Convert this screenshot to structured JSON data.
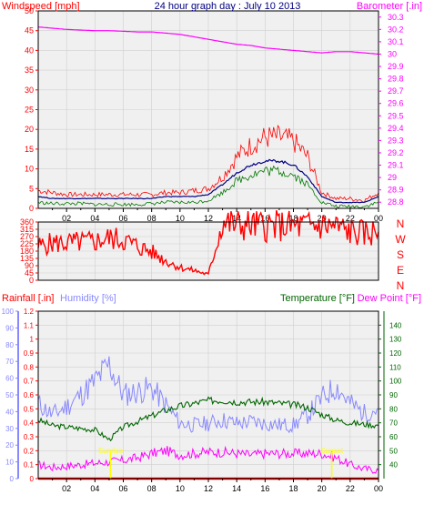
{
  "colors": {
    "background": "#ffffff",
    "panel": "#f0f0f0",
    "frame": "#000000",
    "windspeed": "#ff0000",
    "windspeed_avg": "#007700",
    "windspeed_mid": "#000080",
    "barometer": "#ff00ff",
    "title": "#000080",
    "direction": "#ff0000",
    "rainfall": "#ff0000",
    "humidity": "#8888ff",
    "temperature": "#006600",
    "dewpoint": "#ff00ff",
    "sun_marker": "#ffff00"
  },
  "header": {
    "title": "24 hour graph day : July 10 2013"
  },
  "chart_data": [
    {
      "type": "line",
      "name": "wind-baro",
      "title": "24 hour graph day : July 10 2013",
      "ylabel_left": "Windspeed [mph]",
      "ylabel_right": "Barometer [.in]",
      "ylim_left": [
        0,
        50
      ],
      "ylim_right": [
        28.75,
        30.35
      ],
      "yticks_left": [
        0,
        5,
        10,
        15,
        20,
        25,
        30,
        35,
        40,
        45,
        50
      ],
      "yticks_right": [
        28.8,
        28.9,
        29,
        29.1,
        29.2,
        29.3,
        29.4,
        29.5,
        29.6,
        29.7,
        29.8,
        29.9,
        30,
        30.1,
        30.2,
        30.3
      ],
      "ytick_labels_right": [
        "28.8",
        "28.9",
        "29",
        "29.1",
        "29.2",
        "29.3",
        "29.4",
        "29.5",
        "29.6",
        "29.7",
        "29.8",
        "29.9",
        "30",
        "30.1",
        "30.2",
        "30.3"
      ],
      "x_hours": [
        0,
        1,
        2,
        3,
        4,
        5,
        6,
        7,
        8,
        9,
        10,
        11,
        12,
        13,
        14,
        15,
        16,
        17,
        18,
        19,
        20,
        21,
        22,
        23,
        24
      ],
      "xtick_labels": [
        "02",
        "04",
        "06",
        "08",
        "10",
        "12",
        "14",
        "16",
        "18",
        "20",
        "22",
        "00"
      ],
      "grid": true,
      "series": [
        {
          "role": "gust",
          "axis": "left",
          "values": [
            4.5,
            4,
            3.5,
            3.5,
            3.5,
            3.5,
            3.5,
            3.5,
            3.5,
            4,
            4,
            4.5,
            5,
            8,
            13,
            16,
            18,
            18,
            17,
            13,
            4,
            2.5,
            2.5,
            2,
            4
          ]
        },
        {
          "role": "average",
          "axis": "left",
          "values": [
            3,
            2.5,
            2.5,
            2.5,
            2.5,
            2.5,
            2.5,
            2.5,
            2.5,
            3,
            3,
            3,
            3.5,
            6,
            9,
            11,
            12,
            12,
            11,
            8,
            3,
            1.5,
            1.5,
            1.5,
            3
          ]
        },
        {
          "role": "speed",
          "axis": "left",
          "values": [
            1.5,
            1.2,
            1.2,
            1.2,
            1,
            1,
            1,
            1,
            1.2,
            1.5,
            1.5,
            1.5,
            2,
            4,
            7,
            8.5,
            9.5,
            9.5,
            8.5,
            6,
            1.5,
            0.5,
            0.5,
            0.5,
            1.5
          ]
        },
        {
          "role": "barometer",
          "axis": "right",
          "values": [
            30.22,
            30.21,
            30.2,
            30.195,
            30.19,
            30.19,
            30.185,
            30.18,
            30.18,
            30.17,
            30.16,
            30.14,
            30.12,
            30.1,
            30.08,
            30.07,
            30.05,
            30.04,
            30.03,
            30.02,
            30.01,
            30.02,
            30.02,
            30.01,
            30.0
          ]
        }
      ]
    },
    {
      "type": "line",
      "name": "wind-direction",
      "ylim": [
        0,
        360
      ],
      "yticks": [
        0,
        45,
        90,
        135,
        180,
        225,
        270,
        315,
        360
      ],
      "ytick_labels": [
        "0",
        "45",
        "90",
        "135",
        "180",
        "225",
        "270",
        "315",
        "360"
      ],
      "compass_labels": [
        "N",
        "W",
        "S",
        "E",
        "N"
      ],
      "x_hours": [
        0,
        1,
        2,
        3,
        4,
        5,
        6,
        7,
        8,
        9,
        10,
        11,
        12,
        13,
        14,
        15,
        16,
        17,
        18,
        19,
        20,
        21,
        22,
        23,
        24
      ],
      "series": [
        {
          "role": "direction",
          "values": [
            210,
            230,
            230,
            235,
            240,
            260,
            250,
            210,
            175,
            120,
            80,
            60,
            35,
            360,
            340,
            340,
            335,
            335,
            335,
            335,
            340,
            330,
            300,
            290,
            300
          ]
        }
      ]
    },
    {
      "type": "line",
      "name": "rain-humidity-temp",
      "ylabel_rain": "Rainfall [.in]",
      "ylabel_humidity": "Humidity [%]",
      "ylabel_temp": "Temperature [°F]",
      "ylabel_dew": "Dew Point [°F]",
      "ylim_rain": [
        0,
        1.2
      ],
      "ylim_humidity": [
        0,
        100
      ],
      "ylim_temp": [
        30,
        150
      ],
      "yticks_rain": [
        0,
        0.1,
        0.2,
        0.3,
        0.4,
        0.5,
        0.6,
        0.7,
        0.8,
        0.9,
        1,
        1.1,
        1.2
      ],
      "ytick_labels_rain": [
        "0",
        "0.1",
        "0.2",
        "0.3",
        "0.4",
        "0.5",
        "0.6",
        "0.7",
        "0.8",
        "0.9",
        "1",
        "1.1",
        "1.2"
      ],
      "yticks_humidity": [
        0,
        10,
        20,
        30,
        40,
        50,
        60,
        70,
        80,
        90,
        100
      ],
      "yticks_temp": [
        40,
        50,
        60,
        70,
        80,
        90,
        100,
        110,
        120,
        130,
        140
      ],
      "x_hours": [
        0,
        1,
        2,
        3,
        4,
        5,
        6,
        7,
        8,
        9,
        10,
        11,
        12,
        13,
        14,
        15,
        16,
        17,
        18,
        19,
        20,
        21,
        22,
        23,
        24
      ],
      "xtick_labels": [
        "02",
        "04",
        "06",
        "08",
        "10",
        "12",
        "14",
        "16",
        "18",
        "20",
        "22",
        "00"
      ],
      "sun_events": [
        {
          "label": "Sunrise",
          "hour": 5.1
        },
        {
          "label": "Sunset",
          "hour": 20.7
        }
      ],
      "series": [
        {
          "role": "rainfall",
          "axis": "rain",
          "values": [
            0,
            0,
            0,
            0,
            0,
            0,
            0,
            0,
            0,
            0,
            0,
            0,
            0,
            0,
            0,
            0,
            0,
            0,
            0,
            0,
            0,
            0,
            0,
            0,
            0
          ]
        },
        {
          "role": "humidity",
          "axis": "humidity",
          "values": [
            45,
            38,
            43,
            50,
            58,
            68,
            50,
            52,
            54,
            44,
            33,
            32,
            33,
            35,
            33,
            34,
            33,
            32,
            32,
            38,
            48,
            55,
            45,
            39,
            42
          ]
        },
        {
          "role": "temperature",
          "axis": "temp",
          "values": [
            72,
            68,
            67,
            66,
            65,
            58,
            67,
            71,
            75,
            79,
            82,
            84,
            86,
            86,
            85,
            85,
            85,
            84,
            83,
            81,
            76,
            72,
            70,
            69,
            68
          ]
        },
        {
          "role": "dewpoint",
          "axis": "temp",
          "values": [
            40,
            38,
            39,
            40,
            41,
            42,
            43,
            45,
            48,
            50,
            47,
            48,
            49,
            49,
            48,
            47,
            48,
            48,
            48,
            48,
            48,
            45,
            40,
            37,
            36
          ]
        }
      ]
    }
  ]
}
